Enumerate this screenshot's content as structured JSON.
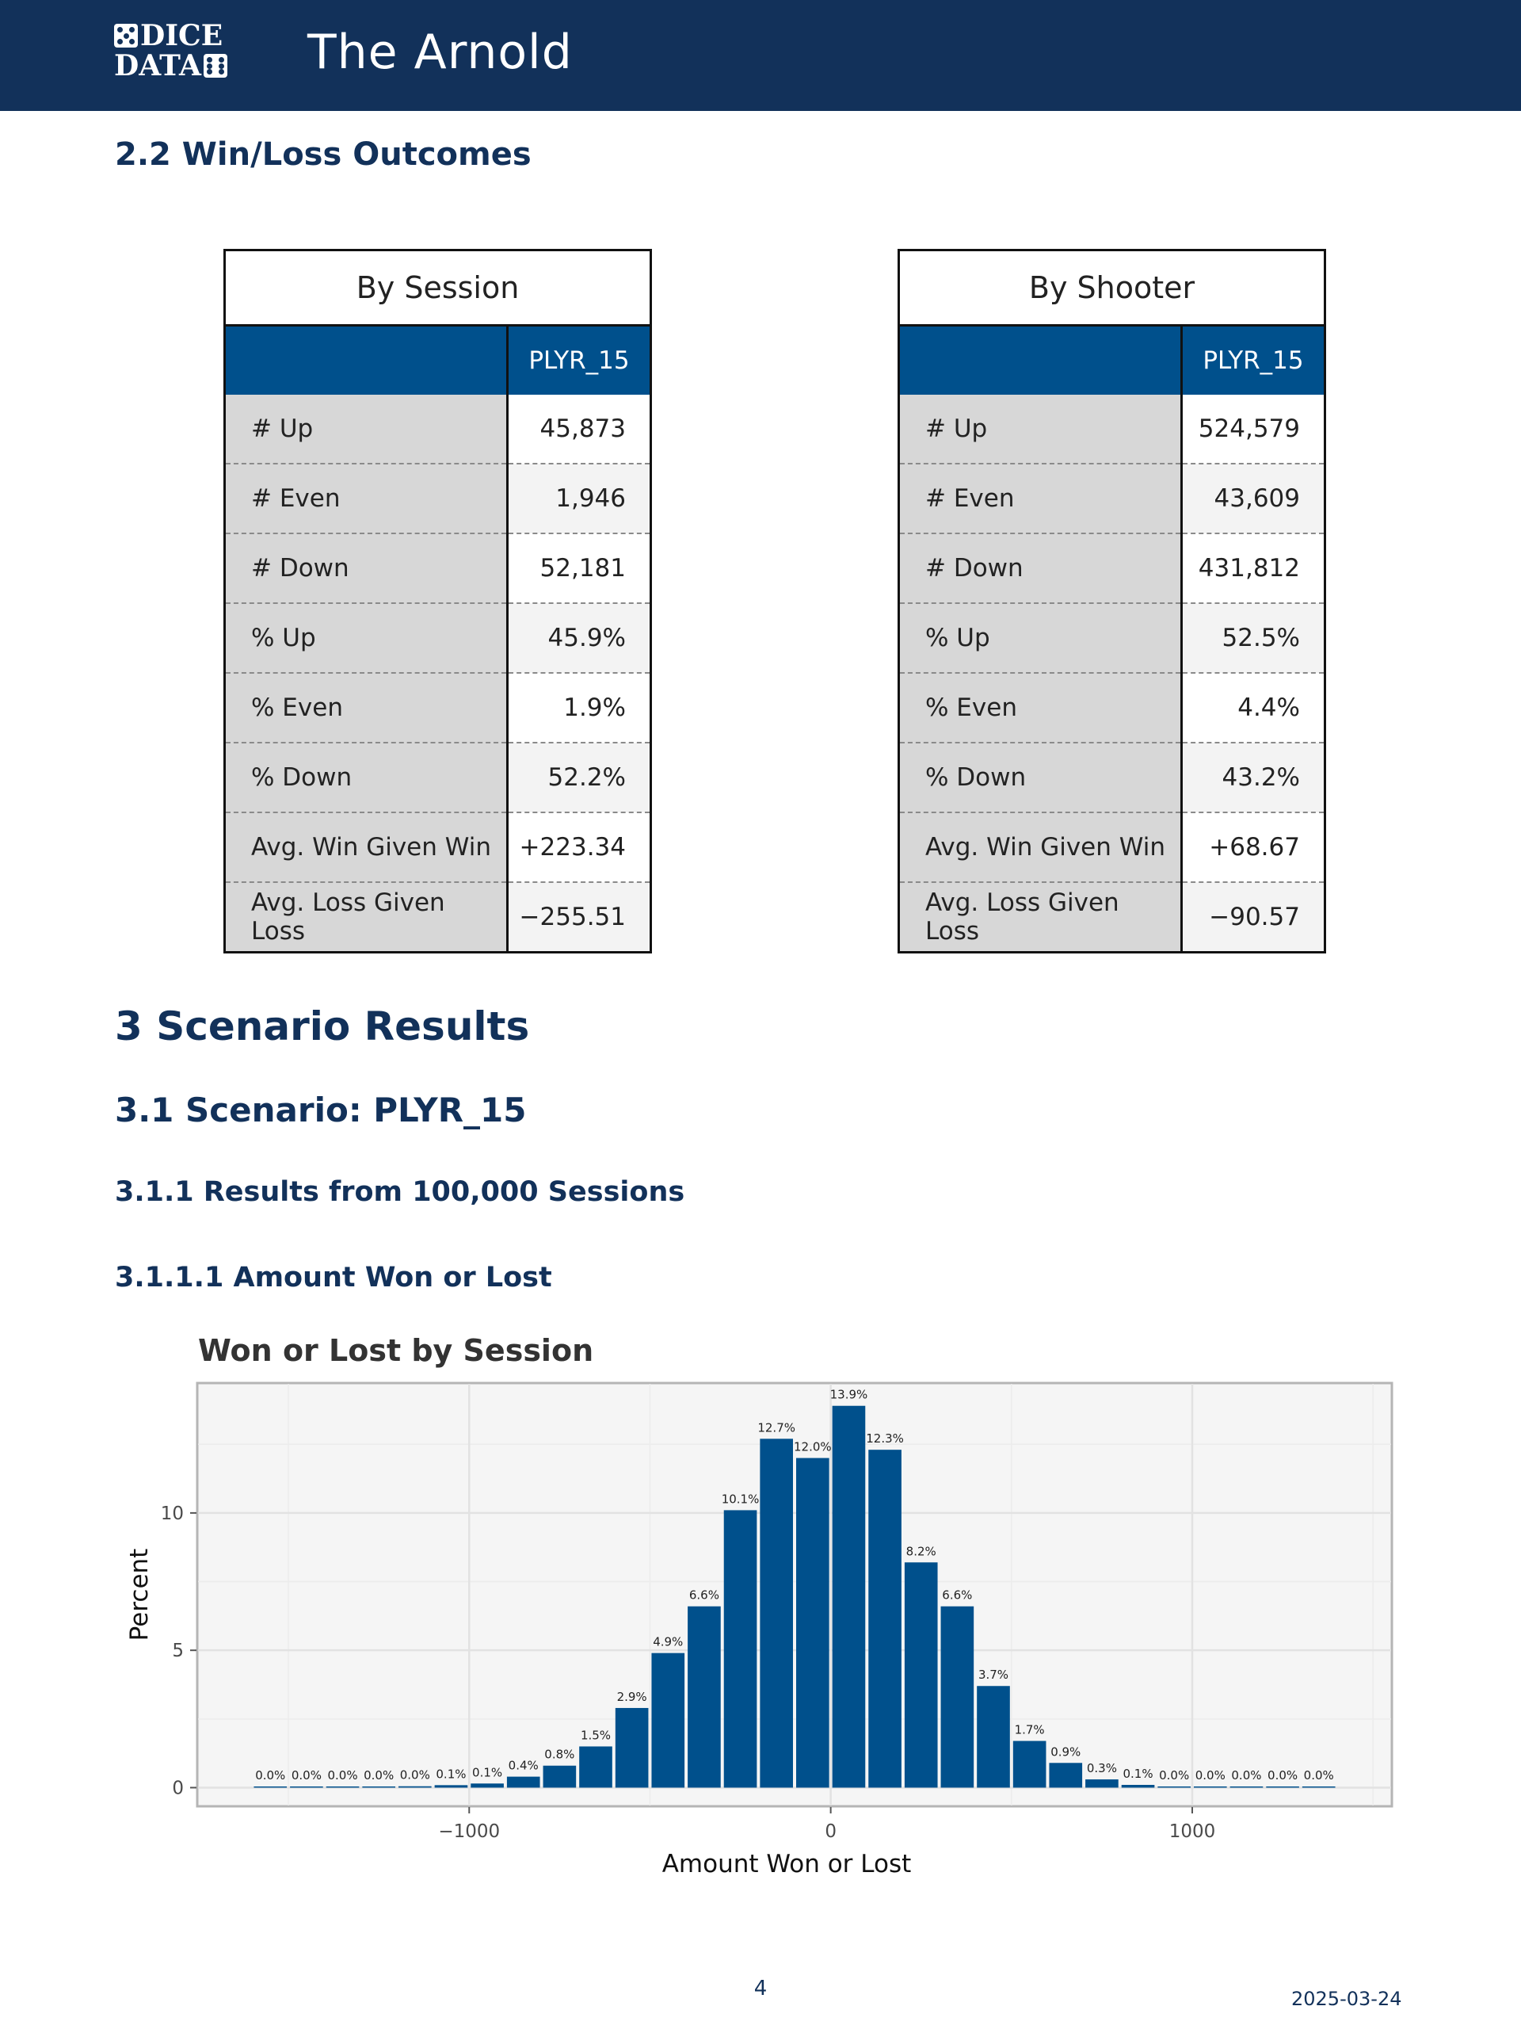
{
  "header": {
    "logo_line1": "DICE",
    "logo_line2": "DATA",
    "title": "The Arnold"
  },
  "section_2_2": {
    "heading": "2.2 Win/Loss Outcomes"
  },
  "tables": [
    {
      "caption": "By Session",
      "column": "PLYR_15",
      "rows": [
        {
          "label": "# Up",
          "value": "45,873"
        },
        {
          "label": "# Even",
          "value": "1,946"
        },
        {
          "label": "# Down",
          "value": "52,181"
        },
        {
          "label": "% Up",
          "value": "45.9%"
        },
        {
          "label": "% Even",
          "value": "1.9%"
        },
        {
          "label": "% Down",
          "value": "52.2%"
        },
        {
          "label": "Avg. Win Given Win",
          "value": "+223.34"
        },
        {
          "label": "Avg. Loss Given Loss",
          "value": "−255.51"
        }
      ]
    },
    {
      "caption": "By Shooter",
      "column": "PLYR_15",
      "rows": [
        {
          "label": "# Up",
          "value": "524,579"
        },
        {
          "label": "# Even",
          "value": "43,609"
        },
        {
          "label": "# Down",
          "value": "431,812"
        },
        {
          "label": "% Up",
          "value": "52.5%"
        },
        {
          "label": "% Even",
          "value": "4.4%"
        },
        {
          "label": "% Down",
          "value": "43.2%"
        },
        {
          "label": "Avg. Win Given Win",
          "value": "+68.67"
        },
        {
          "label": "Avg. Loss Given Loss",
          "value": "−90.57"
        }
      ]
    }
  ],
  "section_3": {
    "heading": "3 Scenario Results"
  },
  "section_3_1": {
    "heading": "3.1 Scenario: PLYR_15"
  },
  "section_3_1_1": {
    "heading": "3.1.1 Results from 100,000 Sessions"
  },
  "section_3_1_1_1": {
    "heading": "3.1.1.1 Amount Won or Lost"
  },
  "chart_data": {
    "type": "bar",
    "title": "Won or Lost by Session",
    "xlabel": "Amount Won or Lost",
    "ylabel": "Percent",
    "x": [
      -1550,
      -1450,
      -1350,
      -1250,
      -1150,
      -1050,
      -950,
      -850,
      -750,
      -650,
      -550,
      -450,
      -350,
      -250,
      -150,
      -50,
      50,
      150,
      250,
      350,
      450,
      550,
      650,
      750,
      850,
      950,
      1050,
      1150,
      1250,
      1350
    ],
    "values": [
      0.0,
      0.0,
      0.0,
      0.0,
      0.05,
      0.09,
      0.15,
      0.4,
      0.8,
      1.5,
      2.9,
      4.9,
      6.6,
      10.1,
      12.7,
      12.0,
      13.9,
      12.3,
      8.2,
      6.6,
      3.7,
      1.7,
      0.9,
      0.3,
      0.1,
      0.0,
      0.0,
      0.0,
      0.0,
      0.0
    ],
    "labels": [
      "0.0%",
      "0.0%",
      "0.0%",
      "0.0%",
      "0.0%",
      "0.1%",
      "0.1%",
      "0.4%",
      "0.8%",
      "1.5%",
      "2.9%",
      "4.9%",
      "6.6%",
      "10.1%",
      "12.7%",
      "12.0%",
      "13.9%",
      "12.3%",
      "8.2%",
      "6.6%",
      "3.7%",
      "1.7%",
      "0.9%",
      "0.3%",
      "0.1%",
      "0.0%",
      "0.0%",
      "0.0%",
      "0.0%",
      "0.0%"
    ],
    "xlim": [
      -1750,
      1550
    ],
    "ylim": [
      -0.65,
      14.7
    ],
    "xticks": [
      -1000,
      0,
      1000
    ],
    "xtick_labels": [
      "−1000",
      "0",
      "1000"
    ],
    "yticks": [
      0,
      5,
      10
    ],
    "ytick_labels": [
      "0",
      "5",
      "10"
    ],
    "grid": true,
    "bar_color": "#00508c",
    "panel_color": "#f5f5f5"
  },
  "footer": {
    "page_number": "4",
    "date": "2025-03-24"
  }
}
